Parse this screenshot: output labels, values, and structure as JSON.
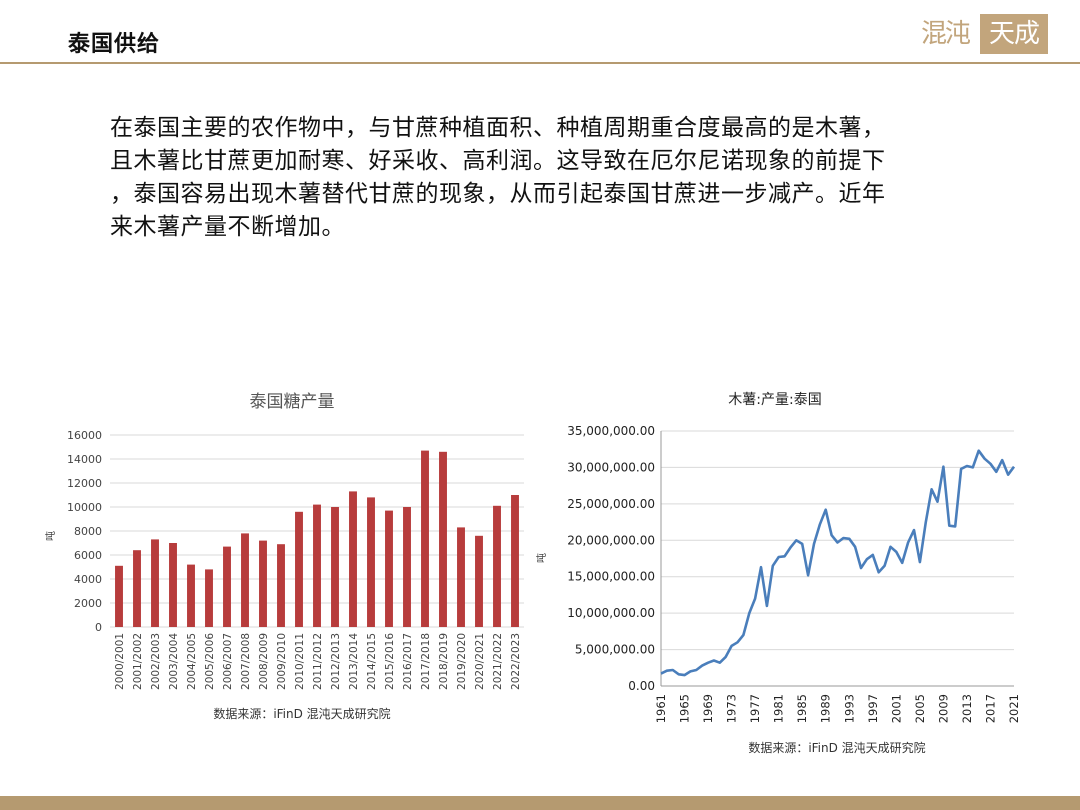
{
  "header": {
    "title": "泰国供给"
  },
  "logo": {
    "left": "混沌",
    "right": "天成"
  },
  "body": {
    "lines": [
      "在泰国主要的农作物中，与甘蔗种植面积、种植周期重合度最高的是木薯，",
      "且木薯比甘蔗更加耐寒、好采收、高利润。这导致在厄尔尼诺现象的前提下",
      "，泰国容易出现木薯替代甘蔗的现象，从而引起泰国甘蔗进一步减产。近年",
      "来木薯产量不断增加。"
    ]
  },
  "chart_data": [
    {
      "type": "bar",
      "title": "泰国糖产量",
      "ylabel": "吨",
      "source": "数据来源：iFinD 混沌天成研究院",
      "ylim": [
        0,
        16000
      ],
      "yticks": [
        0,
        2000,
        4000,
        6000,
        8000,
        10000,
        12000,
        14000,
        16000
      ],
      "color": "#b73c3c",
      "categories": [
        "2000/2001",
        "2001/2002",
        "2002/2003",
        "2003/2004",
        "2004/2005",
        "2005/2006",
        "2006/2007",
        "2007/2008",
        "2008/2009",
        "2009/2010",
        "2010/2011",
        "2011/2012",
        "2012/2013",
        "2013/2014",
        "2014/2015",
        "2015/2016",
        "2016/2017",
        "2017/2018",
        "2018/2019",
        "2019/2020",
        "2020/2021",
        "2021/2022",
        "2022/2023"
      ],
      "values": [
        5100,
        6400,
        7300,
        7000,
        5200,
        4800,
        6700,
        7800,
        7200,
        6900,
        9600,
        10200,
        10000,
        11300,
        10800,
        9700,
        10000,
        14700,
        14600,
        8300,
        7600,
        10100,
        11000
      ],
      "grid": true
    },
    {
      "type": "line",
      "title": "木薯:产量:泰国",
      "ylabel": "吨",
      "source": "数据来源：iFinD 混沌天成研究院",
      "ylim": [
        0,
        35000000
      ],
      "yticks": [
        "0.00",
        "5,000,000.00",
        "10,000,000.00",
        "15,000,000.00",
        "20,000,000.00",
        "25,000,000.00",
        "30,000,000.00",
        "35,000,000.00"
      ],
      "xticks": [
        "1961",
        "1965",
        "1969",
        "1973",
        "1977",
        "1981",
        "1985",
        "1989",
        "1993",
        "1997",
        "2001",
        "2005",
        "2009",
        "2013",
        "2017",
        "2021"
      ],
      "color": "#4a7ebb",
      "x": [
        1961,
        1962,
        1963,
        1964,
        1965,
        1966,
        1967,
        1968,
        1969,
        1970,
        1971,
        1972,
        1973,
        1974,
        1975,
        1976,
        1977,
        1978,
        1979,
        1980,
        1981,
        1982,
        1983,
        1984,
        1985,
        1986,
        1987,
        1988,
        1989,
        1990,
        1991,
        1992,
        1993,
        1994,
        1995,
        1996,
        1997,
        1998,
        1999,
        2000,
        2001,
        2002,
        2003,
        2004,
        2005,
        2006,
        2007,
        2008,
        2009,
        2010,
        2011,
        2012,
        2013,
        2014,
        2015,
        2016,
        2017,
        2018,
        2019,
        2020,
        2021
      ],
      "y": [
        1700000,
        2100000,
        2200000,
        1600000,
        1500000,
        2000000,
        2200000,
        2800000,
        3200000,
        3500000,
        3200000,
        4000000,
        5500000,
        6000000,
        7000000,
        10000000,
        12000000,
        16300000,
        11000000,
        16500000,
        17700000,
        17800000,
        19000000,
        20000000,
        19500000,
        15200000,
        19500000,
        22200000,
        24200000,
        20700000,
        19700000,
        20300000,
        20200000,
        19100000,
        16200000,
        17400000,
        18000000,
        15600000,
        16500000,
        19100000,
        18400000,
        16900000,
        19700000,
        21400000,
        17000000,
        22500000,
        27000000,
        25300000,
        30100000,
        22000000,
        21900000,
        29800000,
        30200000,
        30000000,
        32300000,
        31200000,
        30500000,
        29400000,
        31000000,
        29000000,
        30100000
      ],
      "grid": true
    }
  ]
}
